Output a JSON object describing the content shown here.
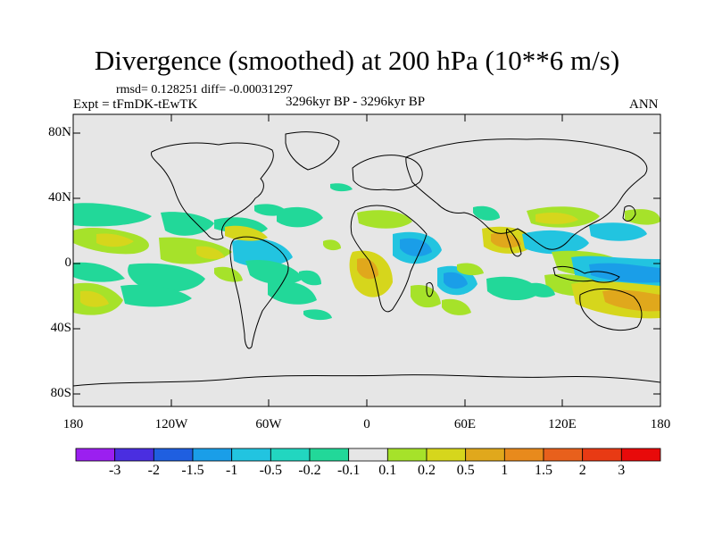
{
  "title": "Divergence (smoothed) at 200 hPa (10**6 m/s)",
  "stats": "rmsd= 0.128251 diff= -0.00031297",
  "experiment": "Expt = tFmDK-tEwTK",
  "period": "3296kyr BP - 3296kyr BP",
  "season": "ANN",
  "map": {
    "lat_ticks": [
      "80N",
      "40N",
      "0",
      "40S",
      "80S"
    ],
    "lon_ticks": [
      "180",
      "120W",
      "60W",
      "0",
      "60E",
      "120E",
      "180"
    ]
  },
  "colorbar": {
    "labels": [
      "-3",
      "-2",
      "-1.5",
      "-1",
      "-0.5",
      "-0.2",
      "-0.1",
      "0.1",
      "0.2",
      "0.5",
      "1",
      "1.5",
      "2",
      "3"
    ],
    "colors": [
      "#9b1ff0",
      "#4a2ee0",
      "#1f5fe0",
      "#1a9ee8",
      "#22c4e0",
      "#22d6c0",
      "#22d899",
      "#e6e6e6",
      "#a6e22a",
      "#d6d61c",
      "#e0a81c",
      "#e88a1c",
      "#e8601c",
      "#e83a14",
      "#e80a0a"
    ]
  },
  "palette": {
    "background": "#e6e6e6",
    "pos_weak": "#a6e22a",
    "pos_mid": "#d6d61c",
    "neg_weak": "#22d899",
    "neg_mid": "#22c4e0",
    "neg_strong": "#1a9ee8"
  }
}
